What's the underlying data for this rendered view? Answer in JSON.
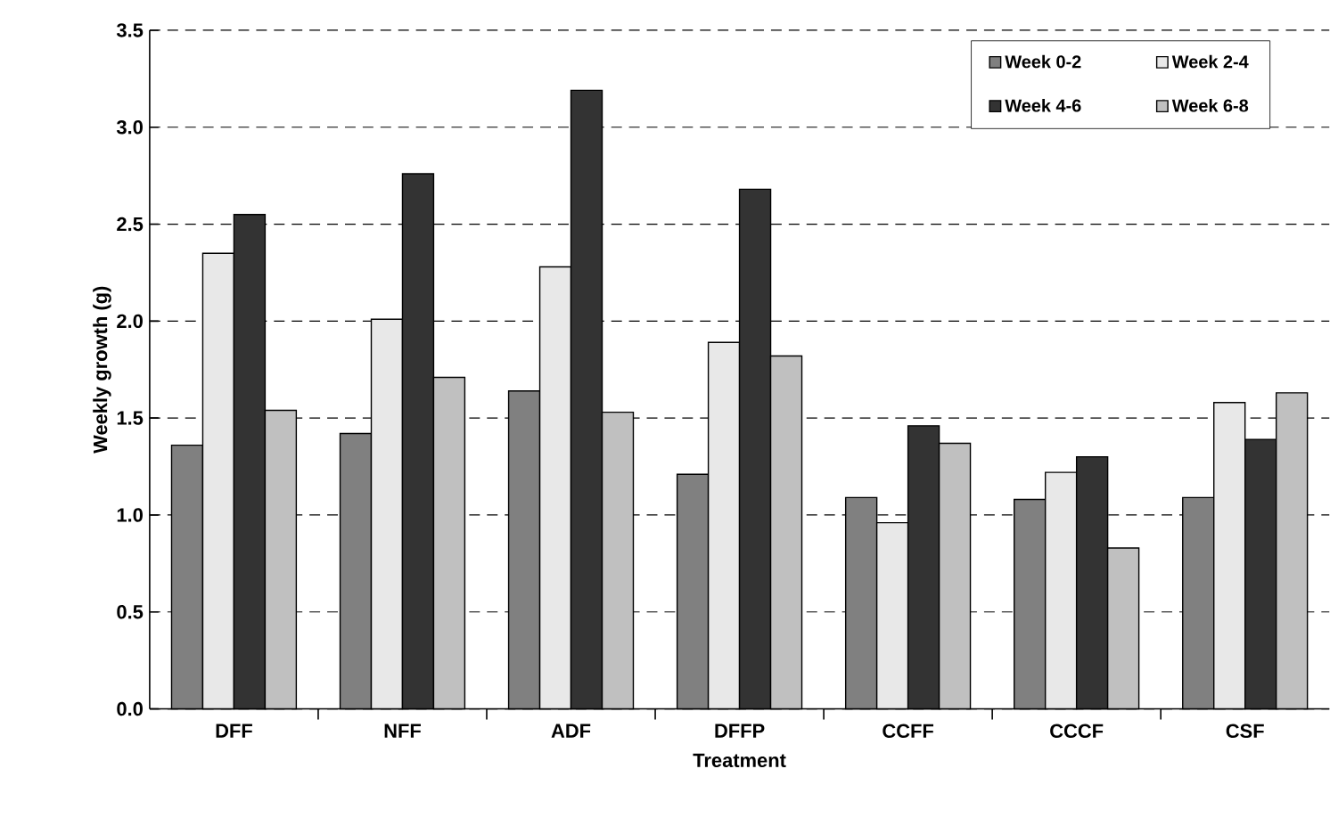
{
  "chart_data": {
    "type": "bar",
    "xlabel": "Treatment",
    "ylabel": "Weekly growth (g)",
    "categories": [
      "DFF",
      "NFF",
      "ADF",
      "DFFP",
      "CCFF",
      "CCCF",
      "CSF"
    ],
    "series": [
      {
        "name": "Week 0-2",
        "color": "#808080",
        "values": [
          1.36,
          1.42,
          1.64,
          1.21,
          1.09,
          1.08,
          1.09
        ]
      },
      {
        "name": "Week 2-4",
        "color": "#e8e8e8",
        "values": [
          2.35,
          2.01,
          2.28,
          1.89,
          0.96,
          1.22,
          1.58
        ]
      },
      {
        "name": "Week 4-6",
        "color": "#333333",
        "values": [
          2.55,
          2.76,
          3.19,
          2.68,
          1.46,
          1.3,
          1.39
        ]
      },
      {
        "name": "Week 6-8",
        "color": "#c0c0c0",
        "values": [
          1.54,
          1.71,
          1.53,
          1.82,
          1.37,
          0.83,
          1.63
        ]
      }
    ],
    "ylim": [
      0,
      3.5
    ],
    "yticks": [
      {
        "value": 0,
        "label": "0.0"
      },
      {
        "value": 0.5,
        "label": "0.5"
      },
      {
        "value": 1,
        "label": "1.0"
      },
      {
        "value": 1.5,
        "label": "1.5"
      },
      {
        "value": 2,
        "label": "2.0"
      },
      {
        "value": 2.5,
        "label": "2.5"
      },
      {
        "value": 3,
        "label": "3.0"
      },
      {
        "value": 3.5,
        "label": "3.5"
      }
    ],
    "grid": "y",
    "legend": "top right"
  }
}
